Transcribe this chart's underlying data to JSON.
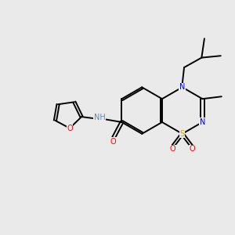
{
  "bg_color": "#eaeaea",
  "colors": {
    "C": "#000000",
    "N": "#0000cc",
    "O": "#ff0000",
    "S": "#ccaa00",
    "H": "#6688aa",
    "bond": "#000000"
  },
  "figsize": [
    3.0,
    3.0
  ],
  "dpi": 100,
  "xlim": [
    0,
    10
  ],
  "ylim": [
    0,
    10
  ],
  "lw": 1.4,
  "fs": 7.0,
  "dbl_off": 0.07
}
